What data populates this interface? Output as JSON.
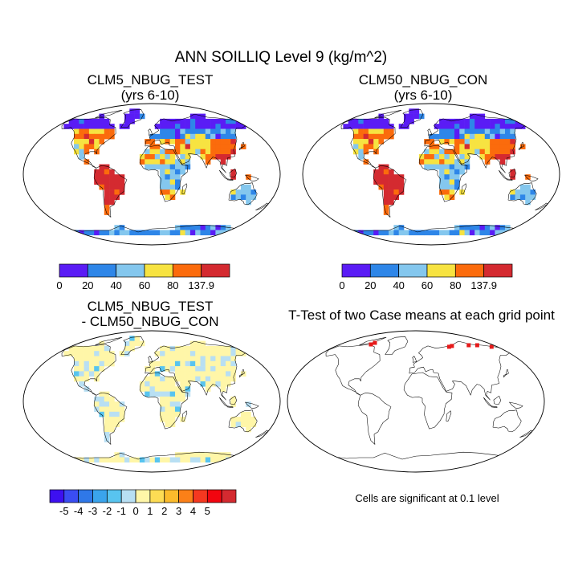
{
  "chart_data": [
    {
      "type": "heatmap",
      "title": "ANN SOILLIQ Level 9 (kg/m^2)",
      "panels": [
        {
          "id": "test",
          "title_lines": [
            "CLM5_NBUG_TEST",
            "(yrs 6-10)"
          ],
          "colorbar": {
            "colors": [
              "#5a1cf5",
              "#2e86e8",
              "#84c7ee",
              "#f7e341",
              "#fb6b0c",
              "#d42a30"
            ],
            "tick_labels": [
              "0",
              "20",
              "40",
              "60",
              "80",
              "137.9"
            ]
          }
        },
        {
          "id": "control",
          "title_lines": [
            "CLM50_NBUG_CON",
            "(yrs 6-10)"
          ],
          "colorbar": {
            "colors": [
              "#5a1cf5",
              "#2e86e8",
              "#84c7ee",
              "#f7e341",
              "#fb6b0c",
              "#d42a30"
            ],
            "tick_labels": [
              "0",
              "20",
              "40",
              "60",
              "80",
              "137.9"
            ]
          }
        },
        {
          "id": "difference",
          "title_lines": [
            "CLM5_NBUG_TEST",
            "- CLM50_NBUG_CON"
          ],
          "colorbar": {
            "colors": [
              "#3d10f0",
              "#3a4df2",
              "#2f78e8",
              "#3aa4ec",
              "#58c4ef",
              "#b8dff3",
              "#fff6a8",
              "#fddc54",
              "#fbbb2c",
              "#fb8018",
              "#f53820",
              "#f2050f",
              "#d42a30"
            ],
            "tick_labels": [
              "-5",
              "-4",
              "-3",
              "-2",
              "-1",
              "0",
              "1",
              "2",
              "3",
              "4",
              "5"
            ]
          }
        },
        {
          "id": "ttest",
          "title_lines": [
            "T-Test of two Case means at each grid point"
          ],
          "note": "Cells are significant at 0.1 level",
          "marker_color": "#e61a1a"
        }
      ]
    }
  ]
}
